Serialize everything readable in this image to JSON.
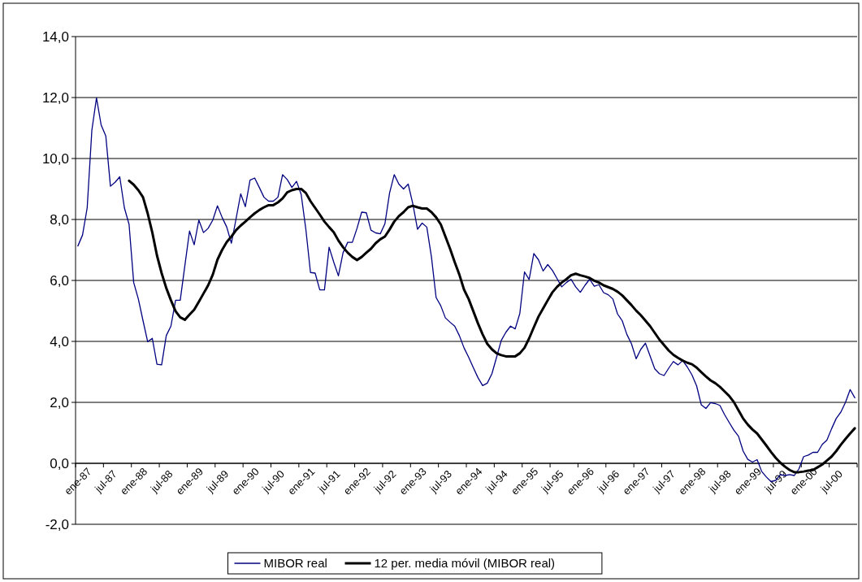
{
  "chart_data": {
    "type": "line",
    "categories": [
      "ene-87",
      null,
      null,
      null,
      null,
      null,
      "jul-87",
      null,
      null,
      null,
      null,
      null,
      "ene-88",
      null,
      null,
      null,
      null,
      null,
      "jul-88",
      null,
      null,
      null,
      null,
      null,
      "ene-89",
      null,
      null,
      null,
      null,
      null,
      "jul-89",
      null,
      null,
      null,
      null,
      null,
      "ene-90",
      null,
      null,
      null,
      null,
      null,
      "jul-90",
      null,
      null,
      null,
      null,
      null,
      "ene-91",
      null,
      null,
      null,
      null,
      null,
      "jul-91",
      null,
      null,
      null,
      null,
      null,
      "ene-92",
      null,
      null,
      null,
      null,
      null,
      "jul-92",
      null,
      null,
      null,
      null,
      null,
      "ene-93",
      null,
      null,
      null,
      null,
      null,
      "jul-93",
      null,
      null,
      null,
      null,
      null,
      "ene-94",
      null,
      null,
      null,
      null,
      null,
      "jul-94",
      null,
      null,
      null,
      null,
      null,
      "ene-95",
      null,
      null,
      null,
      null,
      null,
      "jul-95",
      null,
      null,
      null,
      null,
      null,
      "ene-96",
      null,
      null,
      null,
      null,
      null,
      "jul-96",
      null,
      null,
      null,
      null,
      null,
      "ene-97",
      null,
      null,
      null,
      null,
      null,
      "jul-97",
      null,
      null,
      null,
      null,
      null,
      "ene-98",
      null,
      null,
      null,
      null,
      null,
      "jul-98",
      null,
      null,
      null,
      null,
      null,
      "ene-99",
      null,
      null,
      null,
      null,
      null,
      "jul-99",
      null,
      null,
      null,
      null,
      null,
      "ene-00",
      null,
      null,
      null,
      null,
      null,
      "jul-00",
      null,
      null,
      null,
      null,
      null
    ],
    "series": [
      {
        "name": "MIBOR real",
        "color": "#000080",
        "values": [
          7.13,
          7.49,
          8.38,
          10.92,
          11.99,
          11.1,
          10.74,
          9.09,
          9.22,
          9.4,
          8.38,
          7.84,
          5.93,
          5.39,
          4.68,
          3.99,
          4.1,
          3.25,
          3.23,
          4.19,
          4.5,
          5.35,
          5.35,
          6.49,
          7.62,
          7.17,
          7.98,
          7.57,
          7.71,
          7.98,
          8.45,
          8.07,
          7.75,
          7.22,
          8.02,
          8.84,
          8.42,
          9.29,
          9.36,
          9.05,
          8.73,
          8.6,
          8.6,
          8.73,
          9.47,
          9.31,
          9.05,
          9.25,
          8.82,
          7.68,
          6.26,
          6.24,
          5.69,
          5.69,
          7.09,
          6.6,
          6.15,
          6.91,
          7.25,
          7.25,
          7.71,
          8.24,
          8.22,
          7.65,
          7.56,
          7.53,
          7.86,
          8.87,
          9.47,
          9.16,
          9.0,
          9.16,
          8.51,
          7.68,
          7.88,
          7.75,
          6.77,
          5.44,
          5.17,
          4.77,
          4.63,
          4.5,
          4.19,
          3.79,
          3.48,
          3.14,
          2.81,
          2.55,
          2.63,
          2.94,
          3.48,
          4.03,
          4.3,
          4.5,
          4.41,
          4.92,
          6.28,
          6.03,
          6.88,
          6.68,
          6.31,
          6.52,
          6.33,
          6.06,
          5.79,
          5.93,
          6.04,
          5.79,
          5.61,
          5.84,
          6.04,
          5.81,
          5.86,
          5.6,
          5.53,
          5.39,
          4.9,
          4.68,
          4.23,
          3.92,
          3.43,
          3.74,
          3.94,
          3.52,
          3.1,
          2.94,
          2.88,
          3.12,
          3.34,
          3.23,
          3.37,
          3.16,
          2.9,
          2.54,
          1.92,
          1.8,
          1.99,
          1.96,
          1.9,
          1.6,
          1.34,
          1.09,
          0.89,
          0.4,
          0.13,
          0.04,
          0.12,
          -0.27,
          -0.45,
          -0.6,
          -0.56,
          -0.37,
          -0.4,
          -0.37,
          -0.4,
          -0.18,
          0.22,
          0.27,
          0.36,
          0.36,
          0.62,
          0.76,
          1.13,
          1.47,
          1.68,
          2.0,
          2.42,
          2.15
        ]
      },
      {
        "name": "12 per. media móvil (MIBOR real)",
        "color": "#000000",
        "values": [
          null,
          null,
          null,
          null,
          null,
          null,
          null,
          null,
          null,
          null,
          null,
          9.27,
          9.14,
          8.96,
          8.73,
          8.2,
          7.57,
          6.82,
          6.24,
          5.75,
          5.35,
          4.99,
          4.79,
          4.71,
          4.88,
          5.04,
          5.3,
          5.57,
          5.84,
          6.19,
          6.68,
          7.0,
          7.26,
          7.44,
          7.65,
          7.8,
          7.93,
          8.07,
          8.2,
          8.31,
          8.4,
          8.47,
          8.47,
          8.56,
          8.69,
          8.89,
          8.96,
          9.0,
          9.0,
          8.87,
          8.6,
          8.38,
          8.16,
          7.93,
          7.75,
          7.58,
          7.31,
          7.09,
          6.91,
          6.77,
          6.67,
          6.77,
          6.91,
          7.04,
          7.22,
          7.35,
          7.44,
          7.67,
          7.93,
          8.11,
          8.24,
          8.4,
          8.45,
          8.4,
          8.36,
          8.36,
          8.24,
          8.07,
          7.84,
          7.44,
          7.04,
          6.6,
          6.19,
          5.7,
          5.39,
          4.99,
          4.59,
          4.23,
          3.92,
          3.74,
          3.61,
          3.55,
          3.51,
          3.51,
          3.51,
          3.61,
          3.79,
          4.1,
          4.46,
          4.81,
          5.08,
          5.35,
          5.61,
          5.79,
          5.93,
          6.04,
          6.17,
          6.22,
          6.17,
          6.13,
          6.08,
          5.99,
          5.93,
          5.84,
          5.78,
          5.72,
          5.63,
          5.51,
          5.35,
          5.19,
          5.01,
          4.86,
          4.68,
          4.5,
          4.28,
          4.06,
          3.88,
          3.7,
          3.56,
          3.46,
          3.37,
          3.3,
          3.25,
          3.14,
          2.99,
          2.85,
          2.72,
          2.63,
          2.51,
          2.36,
          2.21,
          2.01,
          1.74,
          1.47,
          1.27,
          1.11,
          0.98,
          0.78,
          0.58,
          0.37,
          0.18,
          0.02,
          -0.11,
          -0.22,
          -0.29,
          -0.29,
          -0.27,
          -0.24,
          -0.22,
          -0.13,
          -0.04,
          0.09,
          0.22,
          0.4,
          0.61,
          0.8,
          0.98,
          1.15
        ]
      }
    ],
    "ylim": [
      -2,
      14
    ],
    "yticks": [
      {
        "value": -2,
        "label": "-2,0"
      },
      {
        "value": 0,
        "label": "0,0"
      },
      {
        "value": 2,
        "label": "2,0"
      },
      {
        "value": 4,
        "label": "4,0"
      },
      {
        "value": 6,
        "label": "6,0"
      },
      {
        "value": 8,
        "label": "8,0"
      },
      {
        "value": 10,
        "label": "10,0"
      },
      {
        "value": 12,
        "label": "12,0"
      },
      {
        "value": 14,
        "label": "14,0"
      }
    ],
    "grid": "y",
    "legend": "bottom",
    "marker": "none",
    "line_style": "solid"
  }
}
